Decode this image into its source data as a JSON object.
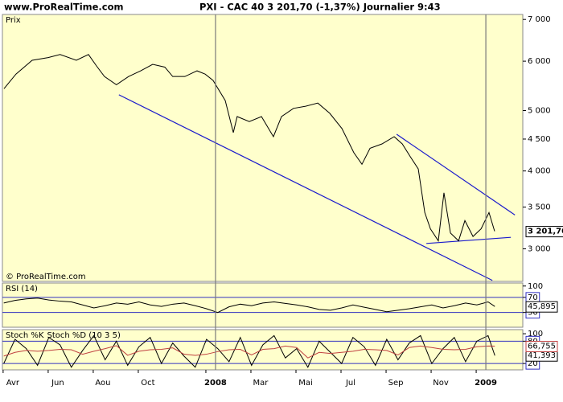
{
  "chart_data": [
    {
      "type": "line",
      "title": "PXI - CAC 40   3 201,70 (-1,37%)   Journalier  9:43",
      "source": "www.ProRealTime.com",
      "credit": "© ProRealTime.com",
      "log": true,
      "xlim": [
        -0.46,
        22.64
      ],
      "ylim": [
        2660,
        7130
      ],
      "yticks": [
        {
          "value": 3000,
          "label": "3 000"
        },
        {
          "value": 3500,
          "label": "3 500"
        },
        {
          "value": 4000,
          "label": "4 000"
        },
        {
          "value": 4500,
          "label": "4 500"
        },
        {
          "value": 5000,
          "label": "5 000"
        },
        {
          "value": 6000,
          "label": "6 000"
        },
        {
          "value": 7000,
          "label": "7 000"
        }
      ],
      "x": [
        -0.39,
        0.14,
        0.86,
        1.57,
        2.1,
        2.82,
        3.36,
        3.71,
        4.07,
        4.6,
        5.14,
        5.68,
        6.21,
        6.75,
        7.1,
        7.64,
        8.18,
        8.54,
        8.89,
        9.43,
        9.79,
        9.96,
        10.5,
        11.04,
        11.57,
        11.93,
        12.46,
        13,
        13.54,
        14.07,
        14.61,
        15.14,
        15.5,
        15.86,
        16.39,
        16.93,
        17.29,
        17.64,
        18,
        18.29,
        18.54,
        18.89,
        19.14,
        19.43,
        19.79,
        20.07,
        20.43,
        20.79,
        21.14,
        21.39
      ],
      "series": [
        {
          "name": "Prix",
          "color": "#000000",
          "values": [
            5420,
            5720,
            6020,
            6080,
            6150,
            6020,
            6150,
            5900,
            5670,
            5500,
            5670,
            5790,
            5930,
            5870,
            5670,
            5670,
            5790,
            5720,
            5590,
            5190,
            4610,
            4890,
            4800,
            4890,
            4540,
            4890,
            5040,
            5080,
            5140,
            4950,
            4680,
            4280,
            4100,
            4350,
            4420,
            4540,
            4420,
            4220,
            4030,
            3430,
            3230,
            3090,
            3690,
            3180,
            3090,
            3330,
            3140,
            3230,
            3430,
            3201.7
          ],
          "value_labels": [
            null,
            null,
            null,
            null,
            null,
            null,
            null,
            null,
            null,
            null,
            null,
            null,
            null,
            null,
            null,
            null,
            null,
            null,
            null,
            null,
            null,
            null,
            null,
            null,
            null,
            null,
            null,
            null,
            null,
            null,
            null,
            null,
            null,
            null,
            null,
            null,
            null,
            null,
            null,
            null,
            null,
            null,
            null,
            null,
            null,
            null,
            null,
            null,
            null,
            "3 201,70"
          ]
        }
      ],
      "trendlines": [
        {
          "color": "#1a1acc",
          "x": [
            4.71,
            21.29
          ],
          "values": [
            5300,
            2670
          ]
        },
        {
          "color": "#1a1acc",
          "x": [
            17.04,
            22.29
          ],
          "values": [
            4580,
            3400
          ]
        },
        {
          "color": "#1a1acc",
          "x": [
            18.36,
            22.11
          ],
          "values": [
            3060,
            3130
          ]
        }
      ]
    },
    {
      "type": "line",
      "xlim": [
        -0.46,
        22.64
      ],
      "ylim": [
        -9,
        108
      ],
      "yticks": [
        100,
        70,
        30
      ],
      "level_lines": [
        70,
        30
      ],
      "level_color": "#3030c0",
      "x": [
        -0.4,
        0.1,
        0.6,
        1.1,
        1.6,
        2.1,
        2.6,
        3.1,
        3.6,
        4.1,
        4.6,
        5.1,
        5.6,
        6.1,
        6.6,
        7.1,
        7.6,
        8.1,
        8.6,
        9.1,
        9.6,
        10.1,
        10.6,
        11.1,
        11.6,
        12.1,
        12.6,
        13.1,
        13.6,
        14.1,
        14.6,
        15.1,
        15.6,
        16.1,
        16.6,
        17.1,
        17.6,
        18.1,
        18.6,
        19.1,
        19.6,
        20.1,
        20.6,
        21.1,
        21.4
      ],
      "series": [
        {
          "name": "RSI (14)",
          "color": "#000000",
          "values": [
            55,
            62,
            66,
            68,
            63,
            60,
            58,
            50,
            42,
            48,
            55,
            52,
            58,
            50,
            46,
            52,
            55,
            48,
            40,
            30,
            45,
            52,
            48,
            55,
            58,
            54,
            50,
            45,
            38,
            36,
            42,
            50,
            44,
            38,
            32,
            36,
            40,
            45,
            50,
            42,
            48,
            55,
            50,
            58,
            45.895
          ],
          "value_labels": [
            null,
            null,
            null,
            null,
            null,
            null,
            null,
            null,
            null,
            null,
            null,
            null,
            null,
            null,
            null,
            null,
            null,
            null,
            null,
            null,
            null,
            null,
            null,
            null,
            null,
            null,
            null,
            null,
            null,
            null,
            null,
            null,
            null,
            null,
            null,
            null,
            null,
            null,
            null,
            null,
            null,
            null,
            null,
            null,
            "45,895"
          ]
        }
      ]
    },
    {
      "type": "line",
      "xlim": [
        -0.46,
        22.64
      ],
      "ylim": [
        3,
        111
      ],
      "yticks": [
        100,
        80,
        20
      ],
      "level_lines": [
        80,
        20
      ],
      "level_color": "#3030c0",
      "xticks": [
        {
          "value": 0,
          "label": "Avr"
        },
        {
          "value": 2,
          "label": "Jun"
        },
        {
          "value": 4,
          "label": "Aou"
        },
        {
          "value": 6,
          "label": "Oct"
        },
        {
          "value": 9,
          "label": "2008"
        },
        {
          "value": 11,
          "label": "Mar"
        },
        {
          "value": 13,
          "label": "Mai"
        },
        {
          "value": 15,
          "label": "Jul"
        },
        {
          "value": 17,
          "label": "Sep"
        },
        {
          "value": 19,
          "label": "Nov"
        },
        {
          "value": 21,
          "label": "2009"
        }
      ],
      "vlines": [
        9,
        21
      ],
      "x": [
        -0.4,
        0.1,
        0.6,
        1.1,
        1.6,
        2.1,
        2.6,
        3.1,
        3.6,
        4.1,
        4.6,
        5.1,
        5.6,
        6.1,
        6.6,
        7.1,
        7.6,
        8.1,
        8.6,
        9.1,
        9.6,
        10.1,
        10.6,
        11.1,
        11.6,
        12.1,
        12.6,
        13.1,
        13.6,
        14.1,
        14.6,
        15.1,
        15.6,
        16.1,
        16.6,
        17.1,
        17.6,
        18.1,
        18.6,
        19.1,
        19.6,
        20.1,
        20.6,
        21.1,
        21.4
      ],
      "series": [
        {
          "name": "Stoch %K",
          "color": "#000000",
          "values": [
            20,
            85,
            60,
            15,
            90,
            70,
            10,
            55,
            95,
            30,
            80,
            15,
            65,
            90,
            20,
            75,
            40,
            10,
            85,
            60,
            25,
            90,
            15,
            70,
            95,
            35,
            60,
            10,
            80,
            50,
            20,
            90,
            65,
            15,
            85,
            30,
            75,
            95,
            20,
            60,
            90,
            25,
            80,
            95,
            41.393
          ],
          "value_labels": [
            null,
            null,
            null,
            null,
            null,
            null,
            null,
            null,
            null,
            null,
            null,
            null,
            null,
            null,
            null,
            null,
            null,
            null,
            null,
            null,
            null,
            null,
            null,
            null,
            null,
            null,
            null,
            null,
            null,
            null,
            null,
            null,
            null,
            null,
            null,
            null,
            null,
            null,
            null,
            null,
            null,
            null,
            null,
            null,
            "41,393"
          ]
        },
        {
          "name": "Stoch %D (10 3 5)",
          "color": "#c04040",
          "values": [
            40,
            50,
            55,
            53,
            55,
            58,
            57,
            45,
            53,
            60,
            68,
            42,
            53,
            57,
            58,
            62,
            45,
            42,
            45,
            52,
            57,
            58,
            43,
            58,
            60,
            67,
            63,
            35,
            50,
            47,
            50,
            53,
            58,
            57,
            55,
            43,
            63,
            67,
            63,
            58,
            57,
            58,
            65,
            67,
            66.755
          ],
          "value_labels": [
            null,
            null,
            null,
            null,
            null,
            null,
            null,
            null,
            null,
            null,
            null,
            null,
            null,
            null,
            null,
            null,
            null,
            null,
            null,
            null,
            null,
            null,
            null,
            null,
            null,
            null,
            null,
            null,
            null,
            null,
            null,
            null,
            null,
            null,
            null,
            null,
            null,
            null,
            null,
            null,
            null,
            null,
            null,
            null,
            "66,755"
          ]
        }
      ]
    }
  ]
}
